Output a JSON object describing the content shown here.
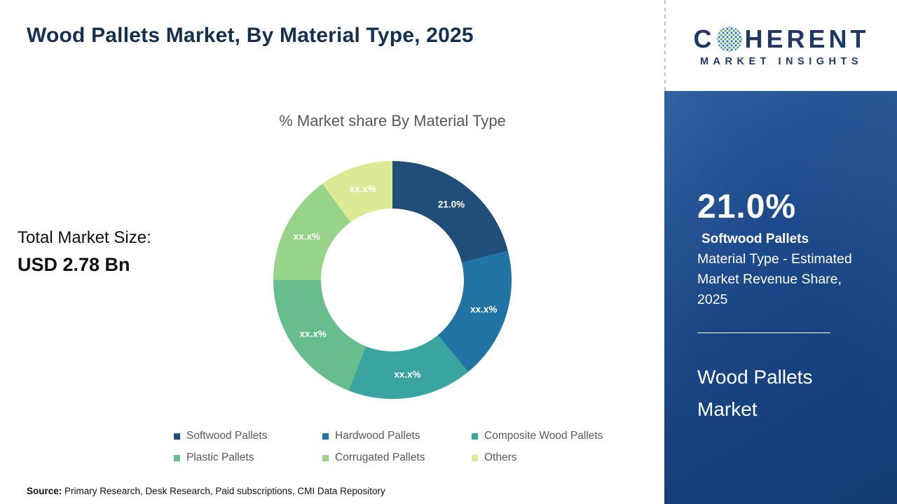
{
  "header": {
    "title": "Wood Pallets Market, By Material Type, 2025"
  },
  "chart": {
    "title": "% Market share By Material Type"
  },
  "market_size": {
    "label": "Total Market Size:",
    "value": "USD 2.78 Bn"
  },
  "chart_data": {
    "type": "pie",
    "donut": true,
    "title": "% Market share By Material Type",
    "unit": "%",
    "start_angle_deg": 0,
    "direction": "clockwise",
    "legend_position": "bottom",
    "segments": [
      {
        "name": "Softwood Pallets",
        "value": 21,
        "display": "21.0%",
        "color": "#1f4e79"
      },
      {
        "name": "Hardwood Pallets",
        "value": 18,
        "display": "xx.x%",
        "color": "#2274a5"
      },
      {
        "name": "Composite Wood Pallets",
        "value": 17,
        "display": "xx.x%",
        "color": "#3aa5a0"
      },
      {
        "name": "Plastic Pallets",
        "value": 19,
        "display": "xx.x%",
        "color": "#67bd8b"
      },
      {
        "name": "Corrugated Pallets",
        "value": 15,
        "display": "xx.x%",
        "color": "#97d489"
      },
      {
        "name": "Others",
        "value": 10,
        "display": "xx.x%",
        "color": "#dcea94"
      }
    ]
  },
  "source": {
    "label": "Source:",
    "text": "Primary Research, Desk Research, Paid subscriptions, CMI Data Repository"
  },
  "logo": {
    "part1": "C",
    "part2": "HERENT",
    "subtitle": "MARKET INSIGHTS"
  },
  "panel": {
    "percentage": "21.0%",
    "segment_name": "Softwood Pallets",
    "description": "Material Type - Estimated Market Revenue Share, 2025",
    "market_name": "Wood Pallets Market",
    "background": "#1b4787",
    "text_color": "#ffffff"
  }
}
